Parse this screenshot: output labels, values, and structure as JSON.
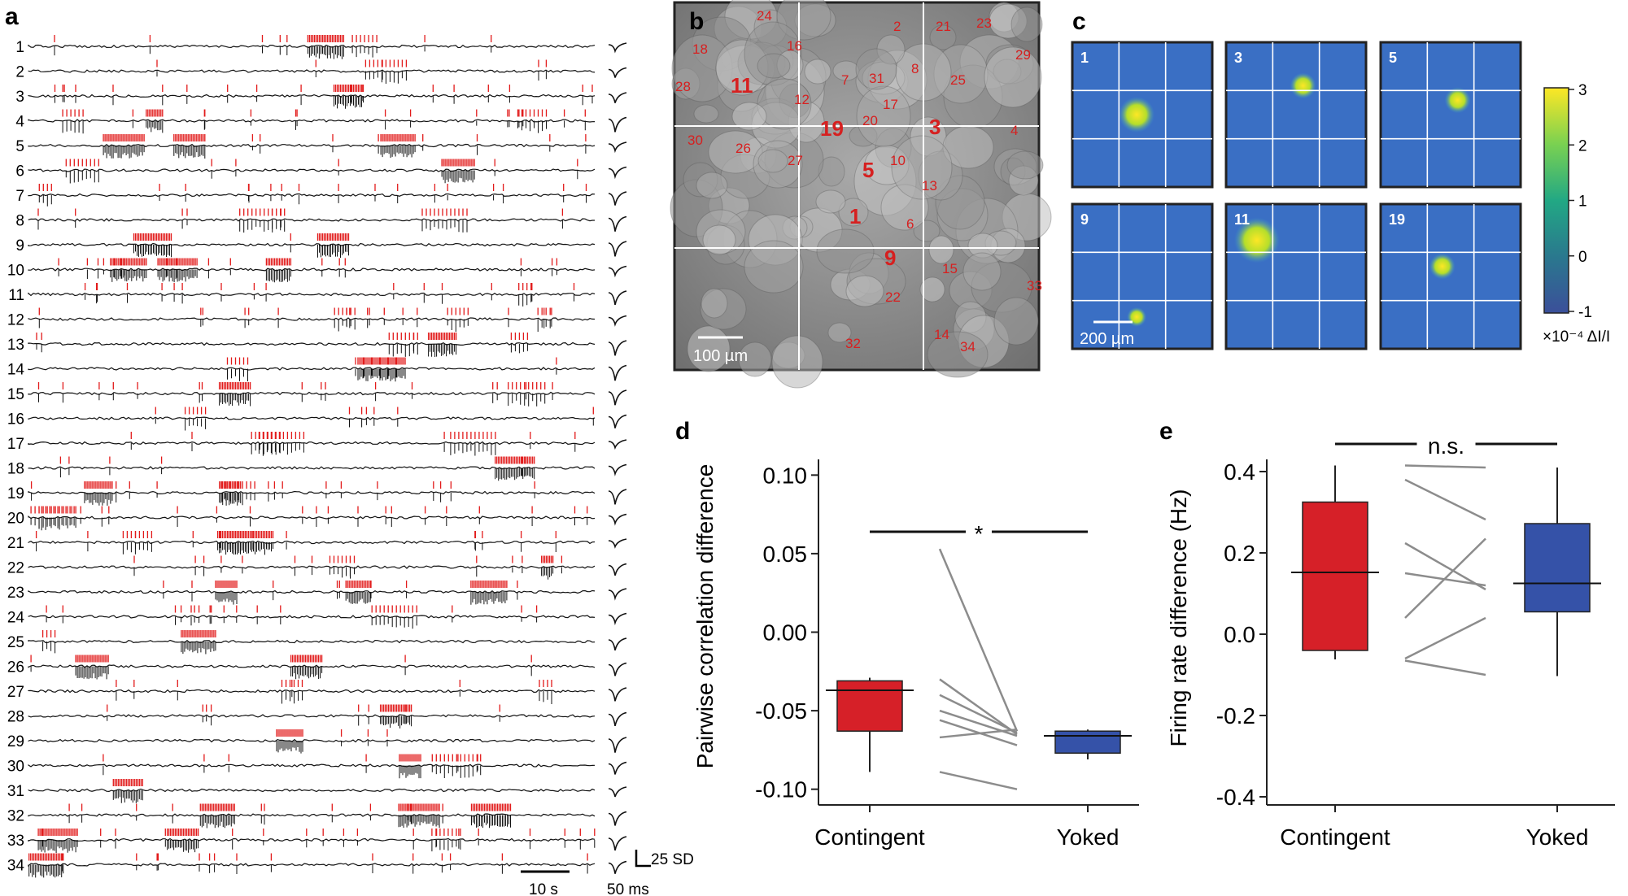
{
  "panels": {
    "a": {
      "label": "a",
      "trace_numbers": [
        "1",
        "2",
        "3",
        "4",
        "5",
        "6",
        "7",
        "8",
        "9",
        "10",
        "11",
        "12",
        "13",
        "14",
        "15",
        "16",
        "17",
        "18",
        "19",
        "20",
        "21",
        "22",
        "23",
        "24",
        "25",
        "26",
        "27",
        "28",
        "29",
        "30",
        "31",
        "32",
        "33",
        "34"
      ],
      "scalebar_time": "10 s",
      "scalebar_waveform_time": "50 ms",
      "scalebar_amplitude": "25 SD"
    },
    "b": {
      "label": "b",
      "scalebar": "100 µm",
      "cells": [
        "24",
        "2",
        "21",
        "23",
        "29",
        "18",
        "16",
        "28",
        "11",
        "7",
        "31",
        "8",
        "25",
        "12",
        "17",
        "30",
        "19",
        "20",
        "3",
        "4",
        "26",
        "27",
        "5",
        "10",
        "13",
        "1",
        "6",
        "9",
        "15",
        "33",
        "22",
        "32",
        "14",
        "34"
      ]
    },
    "c": {
      "label": "c",
      "tiles": [
        "1",
        "3",
        "5",
        "9",
        "11",
        "19"
      ],
      "scalebar": "200 µm",
      "colorbar_ticks": [
        "3",
        "2",
        "1",
        "0",
        "-1"
      ],
      "colorbar_unit": "×10⁻⁴ ΔI/I"
    },
    "d": {
      "label": "d",
      "ylabel": "Pairwise correlation difference",
      "yticks": [
        "0.10",
        "0.05",
        "0.00",
        "-0.05",
        "-0.10"
      ],
      "categories": [
        "Contingent",
        "Yoked"
      ],
      "significance": "*"
    },
    "e": {
      "label": "e",
      "ylabel": "Firing rate difference (Hz)",
      "yticks": [
        "0.4",
        "0.2",
        "0.0",
        "-0.2",
        "-0.4"
      ],
      "categories": [
        "Contingent",
        "Yoked"
      ],
      "significance": "n.s."
    }
  },
  "colors": {
    "red": "#d62028",
    "blue": "#3552a8",
    "gray": "#8c8c8c",
    "annot": "#e21b1b"
  },
  "chart_data": [
    {
      "type": "box",
      "panel": "d",
      "ylabel": "Pairwise correlation difference",
      "ylim": [
        -0.11,
        0.11
      ],
      "categories": [
        "Contingent",
        "Yoked"
      ],
      "boxes": [
        {
          "name": "Contingent",
          "q1": -0.063,
          "median": -0.037,
          "q3": -0.031,
          "whisker_low": -0.089,
          "whisker_high": -0.029
        },
        {
          "name": "Yoked",
          "q1": -0.077,
          "median": -0.066,
          "q3": -0.063,
          "whisker_low": -0.081,
          "whisker_high": -0.062
        }
      ],
      "paired_lines": [
        [
          0.053,
          -0.063
        ],
        [
          -0.03,
          -0.065
        ],
        [
          -0.04,
          -0.064
        ],
        [
          -0.05,
          -0.066
        ],
        [
          -0.056,
          -0.072
        ],
        [
          -0.067,
          -0.062
        ],
        [
          -0.089,
          -0.1
        ]
      ]
    },
    {
      "type": "box",
      "panel": "e",
      "ylabel": "Firing rate difference (Hz)",
      "ylim": [
        -0.42,
        0.43
      ],
      "categories": [
        "Contingent",
        "Yoked"
      ],
      "boxes": [
        {
          "name": "Contingent",
          "q1": -0.04,
          "median": 0.152,
          "q3": 0.325,
          "whisker_low": -0.062,
          "whisker_high": 0.415
        },
        {
          "name": "Yoked",
          "q1": 0.055,
          "median": 0.125,
          "q3": 0.272,
          "whisker_low": -0.103,
          "whisker_high": 0.41
        }
      ],
      "paired_lines": [
        [
          0.415,
          0.41
        ],
        [
          0.38,
          0.282
        ],
        [
          0.15,
          0.12
        ],
        [
          0.04,
          0.235
        ],
        [
          0.224,
          0.11
        ],
        [
          -0.06,
          0.04
        ],
        [
          -0.065,
          -0.1
        ]
      ]
    }
  ]
}
